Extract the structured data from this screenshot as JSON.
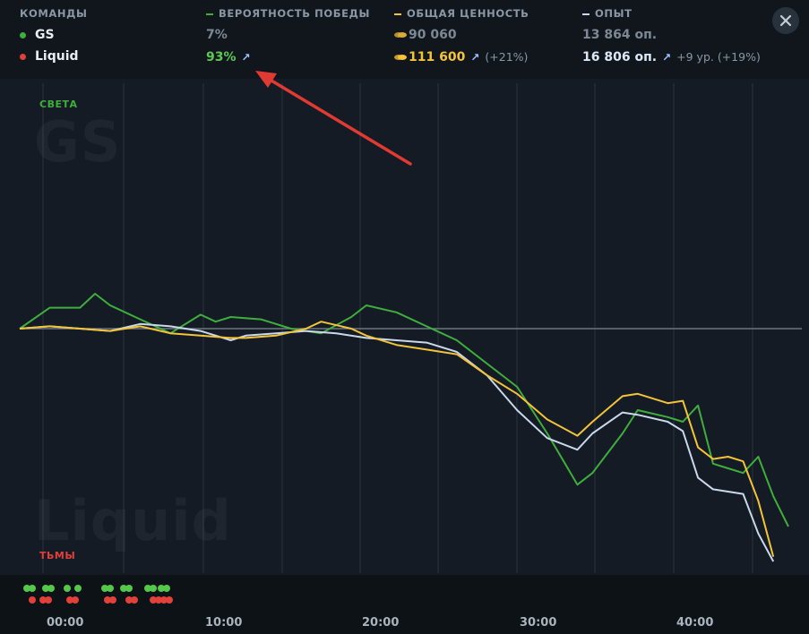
{
  "header": {
    "teams_label": "КОМАНДЫ",
    "winprob_label": "ВЕРОЯТНОСТЬ ПОБЕДЫ",
    "networth_label": "ОБЩАЯ ЦЕННОСТЬ",
    "xp_label": "ОПЫТ",
    "colors": {
      "winprob": "#3fae3c",
      "networth": "#f3c33a",
      "xp": "#c9d8ec"
    }
  },
  "teams": [
    {
      "name": "GS",
      "color": "#3fae3c",
      "winprob": "7%",
      "networth": "90 060",
      "xp": "13 864 оп."
    },
    {
      "name": "Liquid",
      "color": "#e0403a",
      "winprob": "93%",
      "networth": "111 600",
      "networth_delta": "(+21%)",
      "xp": "16 806 оп.",
      "xp_delta": "+9 ур. (+19%)"
    }
  ],
  "close_icon": "close-icon",
  "chart_labels": {
    "top_side": "СВЕТА",
    "bottom_side": "ТЬМЫ",
    "top_team": "GS",
    "bottom_team": "Liquid"
  },
  "timeline_ticks": [
    "00:00",
    "10:00",
    "20:00",
    "30:00",
    "40:00"
  ],
  "chart_data": {
    "type": "line",
    "x": [
      0,
      1,
      2,
      3,
      4,
      5,
      6,
      7,
      8,
      9,
      10,
      11,
      12,
      13,
      14,
      15,
      16,
      17,
      18,
      19,
      20,
      21,
      22,
      23,
      24,
      25,
      26,
      27,
      28,
      29,
      30,
      31,
      32,
      33,
      34,
      35,
      36,
      37,
      38,
      39,
      40,
      41,
      42,
      43,
      44,
      45,
      46,
      47,
      48,
      49,
      50,
      51,
      52,
      53,
      54,
      55,
      56,
      57,
      58,
      59,
      60,
      61,
      62,
      63,
      64,
      65,
      66,
      67,
      68,
      69,
      70,
      71,
      72,
      73,
      74,
      75,
      76,
      77,
      78,
      79,
      80,
      81,
      82,
      83,
      84,
      85,
      86,
      87,
      88,
      89,
      90,
      91,
      92,
      93,
      94,
      95,
      96,
      97,
      98,
      99,
      100,
      101,
      102,
      103,
      104,
      105,
      106,
      107,
      108,
      109,
      110,
      111,
      112,
      113,
      114,
      115,
      116,
      117,
      118,
      119,
      120,
      121,
      122,
      123,
      124,
      125,
      126,
      127,
      128,
      129,
      130,
      131,
      132,
      133,
      134,
      135,
      136,
      137,
      138,
      139,
      140,
      141,
      142,
      143,
      144,
      145,
      146,
      147,
      148,
      149,
      150,
      151,
      152,
      153,
      154,
      155,
      156,
      157,
      158,
      159,
      160,
      161,
      162,
      163,
      164,
      165,
      166,
      167,
      168,
      169,
      170,
      171,
      172,
      173,
      174,
      175,
      176,
      177,
      178,
      179,
      180,
      181,
      182,
      183,
      184,
      185,
      186,
      187,
      188,
      189,
      190,
      191,
      192,
      193,
      194,
      195,
      196,
      197,
      198,
      199,
      200,
      201,
      202,
      203,
      204,
      205,
      206,
      207,
      208,
      209,
      210,
      211,
      212,
      213,
      214,
      215,
      216,
      217,
      218,
      219,
      220,
      221,
      222,
      223,
      224,
      225,
      226,
      227,
      228,
      229,
      230,
      231,
      232,
      233,
      234,
      235,
      236,
      237,
      238,
      239,
      240,
      241,
      242,
      243,
      244,
      245,
      246,
      247,
      248,
      249,
      250,
      251,
      252,
      253,
      254,
      255,
      256,
      257,
      258,
      259,
      260,
      261,
      262,
      263,
      264,
      265,
      266,
      267,
      268,
      269,
      270,
      271,
      272,
      273,
      274,
      275,
      276,
      277,
      278,
      279,
      280,
      281,
      282,
      283,
      284,
      285,
      286,
      287,
      288,
      289,
      290,
      291,
      292,
      293,
      294,
      295,
      296,
      297,
      298,
      299,
      300,
      301,
      302,
      303,
      304,
      305,
      306,
      307,
      308,
      309,
      310,
      311,
      312,
      313,
      314,
      315,
      316,
      317,
      318,
      319,
      320,
      321,
      322,
      323,
      324,
      325,
      326,
      327,
      328,
      329,
      330,
      331,
      332,
      333,
      334,
      335,
      336,
      337,
      338,
      339,
      340,
      341,
      342,
      343,
      344,
      345,
      346,
      347,
      348,
      349,
      350,
      351,
      352,
      353,
      354,
      355,
      356,
      357,
      358,
      359,
      360,
      361,
      362,
      363,
      364,
      365,
      366,
      367,
      368,
      369,
      370,
      371,
      372,
      373,
      374,
      375,
      376,
      377,
      378,
      379,
      380,
      381,
      382,
      383,
      384,
      385,
      386,
      387,
      388,
      389,
      390,
      391,
      392,
      393,
      394,
      395,
      396,
      397,
      398,
      399,
      400,
      401,
      402,
      403,
      404,
      405,
      406,
      407,
      408,
      409,
      410,
      411,
      412,
      413,
      414,
      415,
      416,
      417,
      418,
      419,
      420,
      421,
      422,
      423,
      424,
      425,
      426,
      427,
      428,
      429,
      430,
      431,
      432,
      433,
      434,
      435,
      436,
      437,
      438,
      439,
      440,
      441,
      442,
      443,
      444,
      445,
      446,
      447,
      448,
      449,
      450,
      451,
      452,
      453,
      454,
      455,
      456,
      457,
      458,
      459,
      460,
      461,
      462,
      463,
      464,
      465,
      466,
      467,
      468,
      469,
      470,
      471,
      472,
      473,
      474,
      475,
      476,
      477,
      478,
      479,
      480,
      481,
      482,
      483,
      484,
      485,
      486,
      487,
      488,
      489,
      490,
      491,
      492,
      493,
      494,
      495,
      496,
      497,
      498,
      499,
      500,
      501,
      502,
      503,
      504,
      505,
      506,
      507,
      508,
      509,
      510,
      511,
      512,
      513,
      514,
      515,
      516,
      517,
      518,
      519,
      520,
      521,
      522,
      523,
      524,
      525,
      526,
      527,
      528,
      529,
      530,
      531,
      532,
      533,
      534,
      535,
      536,
      537,
      538,
      539,
      540,
      541,
      542,
      543,
      544,
      545,
      546,
      547,
      548,
      549,
      550,
      551,
      552,
      553,
      554,
      555,
      556,
      557,
      558,
      559,
      560,
      561,
      562,
      563,
      564,
      565,
      566,
      567,
      568,
      569,
      570,
      571,
      572,
      573,
      574,
      575,
      576,
      577,
      578,
      579,
      580,
      581,
      582,
      583,
      584,
      585,
      586,
      587,
      588,
      589,
      590,
      591,
      592,
      593,
      594,
      595,
      596,
      597,
      598,
      599,
      600,
      601,
      602,
      603,
      604,
      605,
      606,
      607,
      608,
      609,
      610,
      611,
      612,
      613,
      614,
      615,
      616,
      617,
      618,
      619,
      620,
      621,
      622,
      623,
      624,
      625,
      626,
      627,
      628,
      629,
      630,
      631,
      632,
      633,
      634,
      635,
      636,
      637,
      638,
      639,
      640,
      641,
      642,
      643,
      644,
      645,
      646,
      647,
      648,
      649,
      650,
      651,
      652,
      653,
      654,
      655,
      656,
      657,
      658,
      659,
      660,
      661,
      662,
      663,
      664,
      665,
      666,
      667,
      668,
      669,
      670,
      671,
      672,
      673,
      674,
      675,
      676,
      677,
      678,
      679,
      680,
      681,
      682,
      683,
      684,
      685,
      686,
      687,
      688,
      689,
      690,
      691,
      692,
      693,
      694,
      695,
      696,
      697,
      698,
      699,
      700,
      701,
      702,
      703,
      704,
      705,
      706,
      707,
      708,
      709,
      710,
      711,
      712,
      713,
      714,
      715,
      716,
      717,
      718,
      719,
      720,
      721,
      722,
      723,
      724,
      725,
      726,
      727,
      728,
      729,
      730,
      731,
      732,
      733,
      734,
      735,
      736,
      737,
      738,
      739,
      740,
      741,
      742,
      743,
      744,
      745,
      746,
      747,
      748,
      749,
      750,
      751,
      752,
      753,
      754,
      755,
      756,
      757,
      758,
      759,
      760,
      761,
      762,
      763,
      764,
      765,
      766,
      767,
      768,
      769,
      770,
      771,
      772,
      773,
      774,
      775,
      776,
      777,
      778,
      779,
      780,
      781,
      782,
      783,
      784,
      785,
      786,
      787,
      788,
      789,
      790,
      791,
      792,
      793,
      794,
      795,
      796,
      797,
      798,
      799,
      800,
      801,
      802,
      803,
      804,
      805,
      806,
      807,
      808,
      809,
      810,
      811,
      812,
      813,
      814,
      815,
      816,
      817,
      818,
      819,
      820,
      821,
      822,
      823,
      824,
      825,
      826,
      827,
      828,
      829,
      830,
      831,
      832,
      833,
      834,
      835,
      836,
      837,
      838,
      839,
      840,
      841,
      842,
      843,
      844,
      845,
      846,
      847,
      848,
      849,
      850,
      851,
      852,
      853,
      854,
      855,
      856,
      857,
      858,
      859,
      860,
      861,
      862,
      863,
      864,
      865,
      866,
      867,
      868,
      869,
      870,
      871,
      872,
      873,
      874,
      875,
      876,
      877,
      878,
      879,
      880,
      881,
      882,
      883,
      884,
      885,
      886,
      887,
      888,
      889,
      890,
      891,
      892,
      893,
      894,
      895,
      896,
      897,
      898,
      899,
      900,
      901,
      902,
      903
    ],
    "ylim": [
      -100,
      100
    ],
    "grid": true,
    "x_ticks": [
      "00:00",
      "10:00",
      "20:00",
      "30:00",
      "40:00"
    ],
    "series_points": {
      "winprob": [
        [
          0,
          0
        ],
        [
          2,
          9
        ],
        [
          4,
          9
        ],
        [
          5,
          15
        ],
        [
          6,
          10
        ],
        [
          8,
          4
        ],
        [
          9,
          1
        ],
        [
          10,
          -2
        ],
        [
          12,
          6
        ],
        [
          13,
          3
        ],
        [
          14,
          5
        ],
        [
          16,
          4
        ],
        [
          18,
          0
        ],
        [
          19,
          -1
        ],
        [
          20,
          -2
        ],
        [
          22,
          5
        ],
        [
          23,
          10
        ],
        [
          25,
          7
        ],
        [
          27,
          1
        ],
        [
          28,
          -2
        ],
        [
          29,
          -5
        ],
        [
          31,
          -15
        ],
        [
          33,
          -25
        ],
        [
          35,
          -45
        ],
        [
          37,
          -67
        ],
        [
          38,
          -62
        ],
        [
          40,
          -45
        ],
        [
          41,
          -35
        ],
        [
          43,
          -38
        ],
        [
          44,
          -40
        ],
        [
          45,
          -33
        ],
        [
          46,
          -58
        ],
        [
          47,
          -60
        ],
        [
          48,
          -62
        ],
        [
          49,
          -55
        ],
        [
          50,
          -72
        ],
        [
          51,
          -85
        ]
      ],
      "networth": [
        [
          0,
          0
        ],
        [
          2,
          1
        ],
        [
          4,
          0
        ],
        [
          6,
          -1
        ],
        [
          8,
          1
        ],
        [
          10,
          -2
        ],
        [
          12,
          -3
        ],
        [
          14,
          -4
        ],
        [
          15,
          -4
        ],
        [
          17,
          -3
        ],
        [
          19,
          0
        ],
        [
          20,
          3
        ],
        [
          22,
          0
        ],
        [
          23,
          -3
        ],
        [
          25,
          -7
        ],
        [
          27,
          -9
        ],
        [
          29,
          -11
        ],
        [
          31,
          -20
        ],
        [
          33,
          -28
        ],
        [
          35,
          -39
        ],
        [
          37,
          -46
        ],
        [
          38,
          -40
        ],
        [
          40,
          -29
        ],
        [
          41,
          -28
        ],
        [
          43,
          -32
        ],
        [
          44,
          -31
        ],
        [
          45,
          -51
        ],
        [
          46,
          -56
        ],
        [
          47,
          -55
        ],
        [
          48,
          -57
        ],
        [
          49,
          -74
        ],
        [
          50,
          -98
        ]
      ],
      "xp": [
        [
          0,
          0
        ],
        [
          2,
          1
        ],
        [
          4,
          0
        ],
        [
          6,
          -1
        ],
        [
          8,
          2
        ],
        [
          10,
          1
        ],
        [
          12,
          -1
        ],
        [
          14,
          -5
        ],
        [
          15,
          -3
        ],
        [
          17,
          -2
        ],
        [
          19,
          -1
        ],
        [
          21,
          -2
        ],
        [
          23,
          -4
        ],
        [
          25,
          -5
        ],
        [
          27,
          -6
        ],
        [
          29,
          -10
        ],
        [
          31,
          -20
        ],
        [
          33,
          -35
        ],
        [
          35,
          -47
        ],
        [
          37,
          -52
        ],
        [
          38,
          -45
        ],
        [
          40,
          -36
        ],
        [
          41,
          -37
        ],
        [
          43,
          -40
        ],
        [
          44,
          -44
        ],
        [
          45,
          -64
        ],
        [
          46,
          -69
        ],
        [
          47,
          -70
        ],
        [
          48,
          -71
        ],
        [
          49,
          -88
        ],
        [
          50,
          -100
        ]
      ]
    },
    "x_max": 51
  },
  "events": {
    "top": [
      30,
      36,
      51,
      57,
      75,
      87,
      117,
      123,
      138,
      144,
      165,
      171,
      180,
      186
    ],
    "bottom": [
      36,
      48,
      54,
      78,
      84,
      120,
      126,
      144,
      150,
      171,
      177,
      183,
      189
    ]
  }
}
